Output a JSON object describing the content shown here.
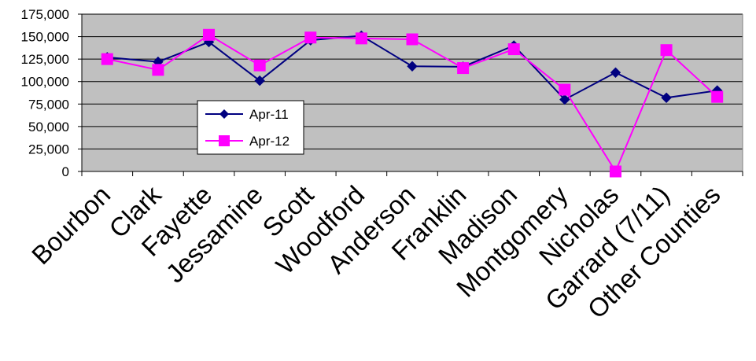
{
  "chart_data": {
    "type": "line",
    "title": "",
    "xlabel": "",
    "ylabel": "",
    "categories": [
      "Bourbon",
      "Clark",
      "Fayette",
      "Jessamine",
      "Scott",
      "Woodford",
      "Anderson",
      "Franklin",
      "Madison",
      "Montgomery",
      "Nicholas",
      "Garrard (7/11)",
      "Other Counties"
    ],
    "ylim": [
      0,
      175000
    ],
    "yticks": [
      0,
      25000,
      50000,
      75000,
      100000,
      125000,
      150000,
      175000
    ],
    "ytick_labels": [
      "0",
      "25,000",
      "50,000",
      "75,000",
      "100,000",
      "125,000",
      "150,000",
      "175,000"
    ],
    "grid": "horizontal",
    "legend_position": "center-left",
    "plot_background": "#c0c0c0",
    "series": [
      {
        "name": "Apr-11",
        "color": "#000080",
        "marker": "diamond",
        "values": [
          127000,
          122000,
          144000,
          101000,
          146000,
          151000,
          117000,
          116500,
          140000,
          80000,
          110000,
          82000,
          90000
        ]
      },
      {
        "name": "Apr-12",
        "color": "#ff00ff",
        "marker": "square",
        "values": [
          125000,
          113000,
          152000,
          118000,
          149000,
          148000,
          147000,
          115000,
          136000,
          91000,
          0,
          135000,
          83000
        ]
      }
    ]
  }
}
